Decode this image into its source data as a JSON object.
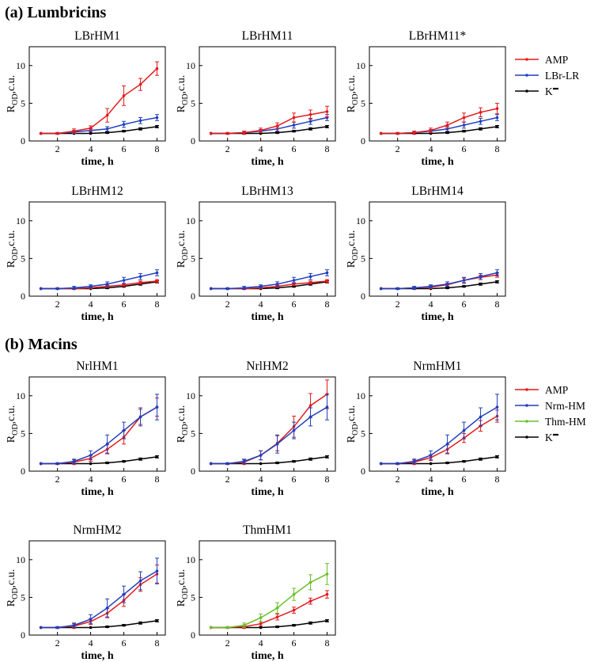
{
  "figure": {
    "section_a": "(a) Lumbricins",
    "section_b": "(b) Macins",
    "xlabel": "time, h",
    "ylabel_main": "R",
    "ylabel_sub": "OD",
    "ylabel_tail": ",c.u."
  },
  "legend_a": [
    {
      "label": "AMP",
      "color": "#e41a1c"
    },
    {
      "label": "LBr-LR",
      "color": "#1f3fbf"
    },
    {
      "label": "K",
      "color": "#000000"
    }
  ],
  "legend_b": [
    {
      "label": "AMP",
      "color": "#e41a1c"
    },
    {
      "label": "Nrm-HM",
      "color": "#1f3fbf"
    },
    {
      "label": "Thm-HM",
      "color": "#6abf2a"
    },
    {
      "label": "K",
      "color": "#000000"
    }
  ],
  "chart_data": [
    {
      "type": "line",
      "title": "LBrHM1",
      "x": [
        1,
        2,
        3,
        4,
        5,
        6,
        7,
        8
      ],
      "xticks": [
        2,
        4,
        6,
        8
      ],
      "yticks": [
        0,
        5,
        10
      ],
      "ylim": [
        0,
        12.5
      ],
      "xlim": [
        0.3,
        8.5
      ],
      "series": [
        {
          "name": "K",
          "color": "#000000",
          "values": [
            1,
            1,
            1,
            1,
            1.1,
            1.3,
            1.6,
            1.9
          ],
          "err": [
            0.05,
            0.05,
            0.05,
            0.05,
            0.1,
            0.1,
            0.15,
            0.15
          ]
        },
        {
          "name": "LBr-LR",
          "color": "#1f3fbf",
          "values": [
            1,
            1,
            1.2,
            1.4,
            1.6,
            2.2,
            2.7,
            3.1
          ],
          "err": [
            0.05,
            0.1,
            0.2,
            0.2,
            0.3,
            0.4,
            0.4,
            0.4
          ]
        },
        {
          "name": "AMP",
          "color": "#e41a1c",
          "values": [
            1,
            1,
            1.3,
            1.7,
            3.4,
            6.0,
            7.5,
            9.6
          ],
          "err": [
            0.05,
            0.1,
            0.3,
            0.3,
            0.9,
            1.3,
            0.8,
            0.9
          ]
        }
      ]
    },
    {
      "type": "line",
      "title": "LBrHM11",
      "x": [
        1,
        2,
        3,
        4,
        5,
        6,
        7,
        8
      ],
      "xticks": [
        2,
        4,
        6,
        8
      ],
      "yticks": [
        0,
        5,
        10
      ],
      "ylim": [
        0,
        12.5
      ],
      "xlim": [
        0.3,
        8.5
      ],
      "series": [
        {
          "name": "K",
          "color": "#000000",
          "values": [
            1,
            1,
            1,
            1,
            1.1,
            1.3,
            1.6,
            1.9
          ],
          "err": [
            0.05,
            0.05,
            0.05,
            0.05,
            0.1,
            0.1,
            0.15,
            0.15
          ]
        },
        {
          "name": "LBr-LR",
          "color": "#1f3fbf",
          "values": [
            1,
            1,
            1.1,
            1.3,
            1.6,
            2.1,
            2.6,
            3.1
          ],
          "err": [
            0.05,
            0.1,
            0.2,
            0.2,
            0.3,
            0.4,
            0.4,
            0.4
          ]
        },
        {
          "name": "AMP",
          "color": "#e41a1c",
          "values": [
            1,
            1,
            1.1,
            1.4,
            2.0,
            3.1,
            3.5,
            3.9
          ],
          "err": [
            0.05,
            0.1,
            0.2,
            0.3,
            0.4,
            0.6,
            0.6,
            0.7
          ]
        }
      ]
    },
    {
      "type": "line",
      "title": "LBrHM11*",
      "x": [
        1,
        2,
        3,
        4,
        5,
        6,
        7,
        8
      ],
      "xticks": [
        2,
        4,
        6,
        8
      ],
      "yticks": [
        0,
        5,
        10
      ],
      "ylim": [
        0,
        12.5
      ],
      "xlim": [
        0.3,
        8.5
      ],
      "series": [
        {
          "name": "K",
          "color": "#000000",
          "values": [
            1,
            1,
            1,
            1,
            1.1,
            1.3,
            1.6,
            1.9
          ],
          "err": [
            0.05,
            0.05,
            0.05,
            0.05,
            0.1,
            0.1,
            0.15,
            0.15
          ]
        },
        {
          "name": "LBr-LR",
          "color": "#1f3fbf",
          "values": [
            1,
            1,
            1.1,
            1.3,
            1.6,
            2.1,
            2.6,
            3.1
          ],
          "err": [
            0.05,
            0.1,
            0.2,
            0.2,
            0.3,
            0.4,
            0.4,
            0.4
          ]
        },
        {
          "name": "AMP",
          "color": "#e41a1c",
          "values": [
            1,
            1,
            1.1,
            1.4,
            2.1,
            3.1,
            3.8,
            4.3
          ],
          "err": [
            0.05,
            0.1,
            0.2,
            0.3,
            0.4,
            0.6,
            0.6,
            0.7
          ]
        }
      ]
    },
    {
      "type": "line",
      "title": "LBrHM12",
      "x": [
        1,
        2,
        3,
        4,
        5,
        6,
        7,
        8
      ],
      "xticks": [
        2,
        4,
        6,
        8
      ],
      "yticks": [
        0,
        5,
        10
      ],
      "ylim": [
        0,
        12.5
      ],
      "xlim": [
        0.3,
        8.5
      ],
      "series": [
        {
          "name": "K",
          "color": "#000000",
          "values": [
            1,
            1,
            1,
            1,
            1.1,
            1.3,
            1.6,
            1.9
          ],
          "err": [
            0.05,
            0.05,
            0.05,
            0.05,
            0.1,
            0.1,
            0.15,
            0.15
          ]
        },
        {
          "name": "AMP",
          "color": "#e41a1c",
          "values": [
            1,
            1,
            1,
            1.1,
            1.3,
            1.5,
            1.8,
            2.0
          ],
          "err": [
            0.05,
            0.05,
            0.1,
            0.1,
            0.15,
            0.2,
            0.2,
            0.2
          ]
        },
        {
          "name": "LBr-LR",
          "color": "#1f3fbf",
          "values": [
            1,
            1,
            1.1,
            1.3,
            1.6,
            2.1,
            2.6,
            3.1
          ],
          "err": [
            0.05,
            0.1,
            0.2,
            0.2,
            0.3,
            0.4,
            0.4,
            0.4
          ]
        }
      ]
    },
    {
      "type": "line",
      "title": "LBrHM13",
      "x": [
        1,
        2,
        3,
        4,
        5,
        6,
        7,
        8
      ],
      "xticks": [
        2,
        4,
        6,
        8
      ],
      "yticks": [
        0,
        5,
        10
      ],
      "ylim": [
        0,
        12.5
      ],
      "xlim": [
        0.3,
        8.5
      ],
      "series": [
        {
          "name": "K",
          "color": "#000000",
          "values": [
            1,
            1,
            1,
            1,
            1.1,
            1.3,
            1.6,
            1.9
          ],
          "err": [
            0.05,
            0.05,
            0.05,
            0.05,
            0.1,
            0.1,
            0.15,
            0.15
          ]
        },
        {
          "name": "AMP",
          "color": "#e41a1c",
          "values": [
            1,
            1,
            1,
            1.1,
            1.3,
            1.6,
            1.8,
            2.0
          ],
          "err": [
            0.05,
            0.05,
            0.1,
            0.1,
            0.15,
            0.2,
            0.2,
            0.2
          ]
        },
        {
          "name": "LBr-LR",
          "color": "#1f3fbf",
          "values": [
            1,
            1,
            1.1,
            1.3,
            1.6,
            2.1,
            2.6,
            3.1
          ],
          "err": [
            0.05,
            0.1,
            0.2,
            0.2,
            0.3,
            0.4,
            0.4,
            0.4
          ]
        }
      ]
    },
    {
      "type": "line",
      "title": "LBrHM14",
      "x": [
        1,
        2,
        3,
        4,
        5,
        6,
        7,
        8
      ],
      "xticks": [
        2,
        4,
        6,
        8
      ],
      "yticks": [
        0,
        5,
        10
      ],
      "ylim": [
        0,
        12.5
      ],
      "xlim": [
        0.3,
        8.5
      ],
      "series": [
        {
          "name": "K",
          "color": "#000000",
          "values": [
            1,
            1,
            1,
            1,
            1.1,
            1.3,
            1.6,
            1.9
          ],
          "err": [
            0.05,
            0.05,
            0.05,
            0.05,
            0.1,
            0.1,
            0.15,
            0.15
          ]
        },
        {
          "name": "AMP",
          "color": "#e41a1c",
          "values": [
            1,
            1,
            1.1,
            1.2,
            1.5,
            2.1,
            2.5,
            2.8
          ],
          "err": [
            0.05,
            0.1,
            0.1,
            0.2,
            0.2,
            0.3,
            0.3,
            0.3
          ]
        },
        {
          "name": "LBr-LR",
          "color": "#1f3fbf",
          "values": [
            1,
            1,
            1.1,
            1.3,
            1.6,
            2.1,
            2.6,
            3.1
          ],
          "err": [
            0.05,
            0.1,
            0.2,
            0.2,
            0.3,
            0.4,
            0.4,
            0.4
          ]
        }
      ]
    },
    {
      "type": "line",
      "title": "NrlHM1",
      "x": [
        1,
        2,
        3,
        4,
        5,
        6,
        7,
        8
      ],
      "xticks": [
        2,
        4,
        6,
        8
      ],
      "yticks": [
        0,
        5,
        10
      ],
      "ylim": [
        0,
        12.5
      ],
      "xlim": [
        0.3,
        8.5
      ],
      "series": [
        {
          "name": "K",
          "color": "#000000",
          "values": [
            1,
            1,
            1,
            1,
            1.1,
            1.3,
            1.6,
            1.9
          ],
          "err": [
            0.05,
            0.05,
            0.05,
            0.05,
            0.1,
            0.1,
            0.15,
            0.15
          ]
        },
        {
          "name": "AMP",
          "color": "#e41a1c",
          "values": [
            1,
            1,
            1.2,
            1.7,
            2.9,
            4.5,
            7.2,
            8.5
          ],
          "err": [
            0.05,
            0.1,
            0.3,
            0.4,
            0.6,
            0.9,
            1.0,
            1.2
          ]
        },
        {
          "name": "Nrm-HM",
          "color": "#1f3fbf",
          "values": [
            1,
            1,
            1.3,
            2.1,
            3.6,
            5.4,
            7.2,
            8.5
          ],
          "err": [
            0.05,
            0.1,
            0.3,
            0.6,
            1.2,
            1.1,
            1.2,
            1.7
          ]
        }
      ]
    },
    {
      "type": "line",
      "title": "NrlHM2",
      "x": [
        1,
        2,
        3,
        4,
        5,
        6,
        7,
        8
      ],
      "xticks": [
        2,
        4,
        6,
        8
      ],
      "yticks": [
        0,
        5,
        10
      ],
      "ylim": [
        0,
        12.5
      ],
      "xlim": [
        0.3,
        8.5
      ],
      "series": [
        {
          "name": "K",
          "color": "#000000",
          "values": [
            1,
            1,
            1,
            1,
            1.1,
            1.3,
            1.6,
            1.9
          ],
          "err": [
            0.05,
            0.05,
            0.05,
            0.05,
            0.1,
            0.1,
            0.15,
            0.15
          ]
        },
        {
          "name": "AMP",
          "color": "#e41a1c",
          "values": [
            1,
            1,
            1.2,
            2.1,
            3.7,
            5.9,
            8.7,
            10.2
          ],
          "err": [
            0.05,
            0.1,
            0.3,
            0.6,
            1.0,
            1.4,
            1.6,
            1.9
          ]
        },
        {
          "name": "Nrm-HM",
          "color": "#1f3fbf",
          "values": [
            1,
            1,
            1.3,
            2.1,
            3.6,
            5.4,
            7.2,
            8.5
          ],
          "err": [
            0.05,
            0.1,
            0.3,
            0.6,
            1.2,
            1.1,
            1.2,
            1.7
          ]
        }
      ]
    },
    {
      "type": "line",
      "title": "NrmHM1",
      "x": [
        1,
        2,
        3,
        4,
        5,
        6,
        7,
        8
      ],
      "xticks": [
        2,
        4,
        6,
        8
      ],
      "yticks": [
        0,
        5,
        10
      ],
      "ylim": [
        0,
        12.5
      ],
      "xlim": [
        0.3,
        8.5
      ],
      "series": [
        {
          "name": "K",
          "color": "#000000",
          "values": [
            1,
            1,
            1,
            1,
            1.1,
            1.3,
            1.6,
            1.9
          ],
          "err": [
            0.05,
            0.05,
            0.05,
            0.05,
            0.1,
            0.1,
            0.15,
            0.15
          ]
        },
        {
          "name": "AMP",
          "color": "#e41a1c",
          "values": [
            1,
            1,
            1.2,
            1.8,
            2.9,
            4.4,
            6.0,
            7.3
          ],
          "err": [
            0.05,
            0.1,
            0.3,
            0.4,
            0.6,
            0.6,
            0.7,
            0.8
          ]
        },
        {
          "name": "Nrm-HM",
          "color": "#1f3fbf",
          "values": [
            1,
            1,
            1.3,
            2.1,
            3.6,
            5.4,
            7.2,
            8.5
          ],
          "err": [
            0.05,
            0.1,
            0.3,
            0.6,
            1.2,
            1.1,
            1.2,
            1.7
          ]
        }
      ]
    },
    {
      "type": "line",
      "title": "NrmHM2",
      "x": [
        1,
        2,
        3,
        4,
        5,
        6,
        7,
        8
      ],
      "xticks": [
        2,
        4,
        6,
        8
      ],
      "yticks": [
        0,
        5,
        10
      ],
      "ylim": [
        0,
        12.5
      ],
      "xlim": [
        0.3,
        8.5
      ],
      "series": [
        {
          "name": "K",
          "color": "#000000",
          "values": [
            1,
            1,
            1,
            1,
            1.1,
            1.3,
            1.6,
            1.9
          ],
          "err": [
            0.05,
            0.05,
            0.05,
            0.05,
            0.1,
            0.1,
            0.15,
            0.15
          ]
        },
        {
          "name": "AMP",
          "color": "#e41a1c",
          "values": [
            1,
            1,
            1.2,
            1.8,
            2.9,
            4.6,
            6.7,
            8.1
          ],
          "err": [
            0.05,
            0.1,
            0.3,
            0.4,
            0.6,
            0.8,
            0.9,
            1.2
          ]
        },
        {
          "name": "Nrm-HM",
          "color": "#1f3fbf",
          "values": [
            1,
            1,
            1.3,
            2.1,
            3.6,
            5.4,
            7.2,
            8.5
          ],
          "err": [
            0.05,
            0.1,
            0.3,
            0.6,
            1.2,
            1.1,
            1.2,
            1.7
          ]
        }
      ]
    },
    {
      "type": "line",
      "title": "ThmHM1",
      "x": [
        1,
        2,
        3,
        4,
        5,
        6,
        7,
        8
      ],
      "xticks": [
        2,
        4,
        6,
        8
      ],
      "yticks": [
        0,
        5,
        10
      ],
      "ylim": [
        0,
        12.5
      ],
      "xlim": [
        0.3,
        8.5
      ],
      "series": [
        {
          "name": "K",
          "color": "#000000",
          "values": [
            1,
            1,
            1,
            1,
            1.1,
            1.3,
            1.6,
            1.9
          ],
          "err": [
            0.05,
            0.05,
            0.05,
            0.05,
            0.1,
            0.1,
            0.15,
            0.15
          ]
        },
        {
          "name": "AMP",
          "color": "#e41a1c",
          "values": [
            1,
            1,
            1.1,
            1.5,
            2.4,
            3.3,
            4.5,
            5.4
          ],
          "err": [
            0.05,
            0.1,
            0.2,
            0.3,
            0.4,
            0.4,
            0.4,
            0.5
          ]
        },
        {
          "name": "Thm-HM",
          "color": "#6abf2a",
          "values": [
            1,
            1,
            1.3,
            2.3,
            3.6,
            5.4,
            7.0,
            8.1
          ],
          "err": [
            0.05,
            0.1,
            0.3,
            0.5,
            0.7,
            0.8,
            1.0,
            1.4
          ]
        }
      ]
    }
  ]
}
